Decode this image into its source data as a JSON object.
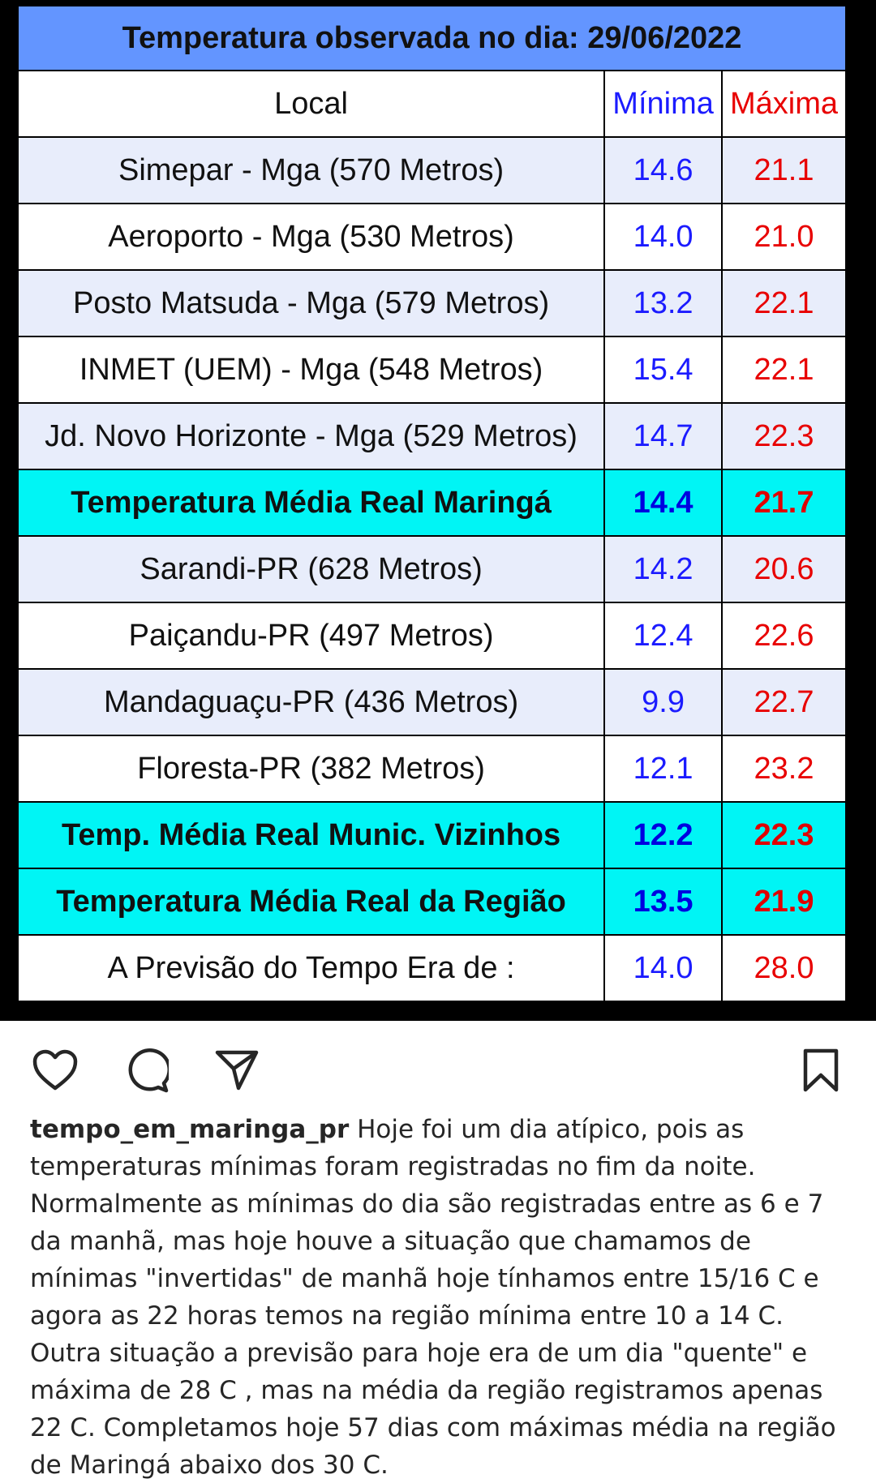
{
  "table": {
    "title": "Temperatura observada no dia: 29/06/2022",
    "headers": {
      "local": "Local",
      "min": "Mínima",
      "max": "Máxima"
    },
    "rows": [
      {
        "local": "Simepar - Mga  (570 Metros)",
        "min": "14.6",
        "max": "21.1",
        "style": "alt"
      },
      {
        "local": "Aeroporto - Mga (530 Metros)",
        "min": "14.0",
        "max": "21.0",
        "style": "wht"
      },
      {
        "local": "Posto Matsuda - Mga (579 Metros)",
        "min": "13.2",
        "max": "22.1",
        "style": "alt"
      },
      {
        "local": "INMET (UEM) - Mga  (548 Metros)",
        "min": "15.4",
        "max": "22.1",
        "style": "wht"
      },
      {
        "local": "Jd. Novo Horizonte - Mga (529 Metros)",
        "min": "14.7",
        "max": "22.3",
        "style": "alt"
      },
      {
        "local": "Temperatura Média Real Maringá",
        "min": "14.4",
        "max": "21.7",
        "style": "hl"
      },
      {
        "local": "Sarandi-PR  (628 Metros)",
        "min": "14.2",
        "max": "20.6",
        "style": "alt"
      },
      {
        "local": "Paiçandu-PR (497 Metros)",
        "min": "12.4",
        "max": "22.6",
        "style": "wht"
      },
      {
        "local": "Mandaguaçu-PR (436 Metros)",
        "min": "9.9",
        "max": "22.7",
        "style": "alt"
      },
      {
        "local": "Floresta-PR (382 Metros)",
        "min": "12.1",
        "max": "23.2",
        "style": "wht"
      },
      {
        "local": "Temp. Média Real Munic. Vizinhos",
        "min": "12.2",
        "max": "22.3",
        "style": "hl"
      },
      {
        "local": "Temperatura Média Real da Região",
        "min": "13.5",
        "max": "21.9",
        "style": "hl"
      },
      {
        "local": "A Previsão do Tempo Era de :",
        "min": "14.0",
        "max": "28.0",
        "style": "wht"
      }
    ]
  },
  "actions": {
    "like": "heart-icon",
    "comment": "comment-icon",
    "share": "send-icon",
    "save": "bookmark-icon"
  },
  "caption": {
    "username": "tempo_em_maringa_pr",
    "text": "Hoje foi um dia atípico, pois as temperaturas mínimas foram registradas no fim da noite. Normalmente as mínimas do dia são registradas entre as 6 e 7 da manhã, mas hoje houve a situação que chamamos de mínimas \"invertidas\" de manhã hoje tínhamos entre 15/16 C e agora as 22 horas temos na região mínima entre 10 a 14 C. Outra situação a previsão para hoje era de um dia \"quente\" e máxima de 28 C , mas na média da região registramos apenas 22 C. Completamos hoje 57 dias com máximas média na região de Maringá abaixo dos 30 C."
  }
}
